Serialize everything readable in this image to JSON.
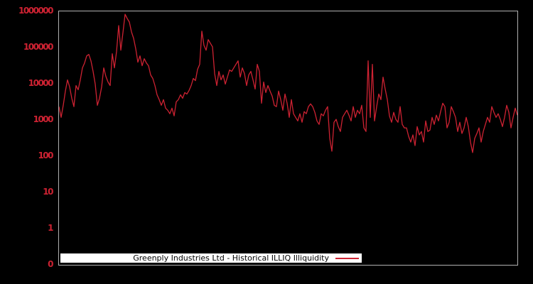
{
  "colors": {
    "background": "#000000",
    "line": "#cd2232",
    "axis_label": "#cd2232",
    "plot_border": "#b0b0b0",
    "legend_background": "#ffffff",
    "legend_text": "#000000"
  },
  "chart_data": {
    "type": "line",
    "title": "Greenply Industries Ltd - Historical ILLIQ Illiquidity",
    "legend_position": "bottom-inside",
    "grid": false,
    "y_axis": {
      "scale": "log",
      "range": [
        0.1,
        1000000
      ],
      "tick_labels": [
        "1000000",
        "100000",
        "10000",
        "1000",
        "100",
        "10",
        "1",
        "0"
      ],
      "tick_values": [
        1000000,
        100000,
        10000,
        1000,
        100,
        10,
        1,
        0.1
      ]
    },
    "x_axis": {
      "tick_labels": [],
      "label": ""
    },
    "series": [
      {
        "name": "Greenply Industries Ltd - Historical ILLIQ Illiquidity",
        "values": [
          2340,
          1180,
          2550,
          6270,
          12800,
          8170,
          3990,
          2340,
          8940,
          6830,
          12800,
          27500,
          37600,
          58900,
          64600,
          43000,
          21900,
          9770,
          2550,
          3990,
          8170,
          27500,
          16000,
          11200,
          8940,
          67600,
          27500,
          77600,
          406000,
          84800,
          259000,
          832000,
          634000,
          508000,
          271000,
          180000,
          92600,
          39500,
          58900,
          31500,
          49300,
          37600,
          31500,
          17500,
          14000,
          8940,
          4970,
          3650,
          2550,
          3650,
          2130,
          1860,
          1490,
          2130,
          1300,
          3180,
          3650,
          4970,
          3990,
          5710,
          5210,
          6540,
          8940,
          14000,
          12200,
          25100,
          34400,
          284000,
          115000,
          84800,
          166000,
          132000,
          105000,
          19200,
          8940,
          21900,
          12800,
          17500,
          9770,
          15300,
          24000,
          21900,
          27500,
          34400,
          43000,
          15300,
          27500,
          19200,
          8940,
          17500,
          21900,
          12800,
          7150,
          34400,
          21900,
          2900,
          11200,
          5710,
          8940,
          6270,
          4560,
          2550,
          2340,
          6270,
          3650,
          1860,
          5210,
          2900,
          1180,
          3650,
          1490,
          1180,
          944,
          1490,
          866,
          1700,
          1490,
          2340,
          2790,
          2340,
          1630,
          944,
          757,
          1490,
          1300,
          1860,
          2340,
          310,
          137,
          866,
          1040,
          656,
          482,
          1180,
          1490,
          1860,
          1360,
          944,
          2340,
          1180,
          1860,
          1490,
          2550,
          607,
          482,
          43000,
          1180,
          34400,
          944,
          2340,
          5210,
          3650,
          15300,
          7150,
          3650,
          1300,
          866,
          1630,
          1040,
          866,
          2340,
          757,
          607,
          607,
          352,
          246,
          388,
          196,
          656,
          388,
          482,
          246,
          944,
          482,
          527,
          1180,
          757,
          1360,
          944,
          1700,
          2900,
          2340,
          607,
          866,
          2340,
          1700,
          1180,
          482,
          866,
          425,
          607,
          1180,
          656,
          246,
          126,
          310,
          425,
          607,
          246,
          482,
          757,
          1180,
          866,
          2340,
          1630,
          1180,
          1490,
          1040,
          656,
          1180,
          2550,
          1630,
          607,
          1180,
          2130,
          1360
        ]
      }
    ]
  }
}
